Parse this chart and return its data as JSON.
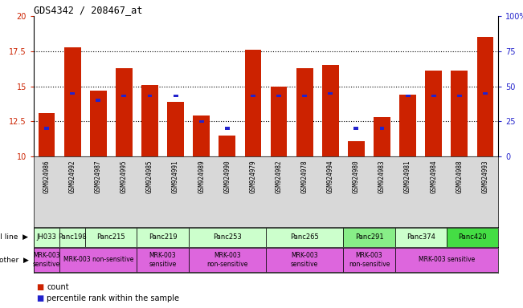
{
  "title": "GDS4342 / 208467_at",
  "samples": [
    "GSM924986",
    "GSM924992",
    "GSM924987",
    "GSM924995",
    "GSM924985",
    "GSM924991",
    "GSM924989",
    "GSM924990",
    "GSM924979",
    "GSM924982",
    "GSM924978",
    "GSM924994",
    "GSM924980",
    "GSM924983",
    "GSM924981",
    "GSM924984",
    "GSM924988",
    "GSM924993"
  ],
  "counts": [
    13.1,
    17.8,
    14.7,
    16.3,
    15.1,
    13.9,
    12.9,
    11.5,
    17.6,
    15.0,
    16.3,
    16.5,
    11.1,
    12.8,
    14.4,
    16.1,
    16.1,
    18.5
  ],
  "percentile_ranks": [
    20,
    45,
    40,
    43,
    43,
    43,
    25,
    20,
    43,
    43,
    43,
    45,
    20,
    20,
    43,
    43,
    43,
    45
  ],
  "ymin": 10,
  "ymax": 20,
  "yticks": [
    10,
    12.5,
    15,
    17.5,
    20
  ],
  "right_yticks": [
    0,
    25,
    50,
    75,
    100
  ],
  "bar_color": "#cc2200",
  "square_color": "#2222cc",
  "background_color": "#ffffff",
  "grid_lines": [
    12.5,
    15.0,
    17.5
  ],
  "cell_lines": [
    {
      "label": "JH033",
      "start": 0,
      "end": 1,
      "color": "#ccffcc"
    },
    {
      "label": "Panc198",
      "start": 1,
      "end": 2,
      "color": "#ccffcc"
    },
    {
      "label": "Panc215",
      "start": 2,
      "end": 4,
      "color": "#ccffcc"
    },
    {
      "label": "Panc219",
      "start": 4,
      "end": 6,
      "color": "#ccffcc"
    },
    {
      "label": "Panc253",
      "start": 6,
      "end": 9,
      "color": "#ccffcc"
    },
    {
      "label": "Panc265",
      "start": 9,
      "end": 12,
      "color": "#ccffcc"
    },
    {
      "label": "Panc291",
      "start": 12,
      "end": 14,
      "color": "#88ee88"
    },
    {
      "label": "Panc374",
      "start": 14,
      "end": 16,
      "color": "#ccffcc"
    },
    {
      "label": "Panc420",
      "start": 16,
      "end": 18,
      "color": "#44dd44"
    }
  ],
  "other_labels": [
    {
      "label": "MRK-003\nsensitive",
      "start": 0,
      "end": 1,
      "color": "#dd66dd"
    },
    {
      "label": "MRK-003 non-sensitive",
      "start": 1,
      "end": 4,
      "color": "#dd66dd"
    },
    {
      "label": "MRK-003\nsensitive",
      "start": 4,
      "end": 6,
      "color": "#dd66dd"
    },
    {
      "label": "MRK-003\nnon-sensitive",
      "start": 6,
      "end": 9,
      "color": "#dd66dd"
    },
    {
      "label": "MRK-003\nsensitive",
      "start": 9,
      "end": 12,
      "color": "#dd66dd"
    },
    {
      "label": "MRK-003\nnon-sensitive",
      "start": 12,
      "end": 14,
      "color": "#dd66dd"
    },
    {
      "label": "MRK-003 sensitive",
      "start": 14,
      "end": 18,
      "color": "#dd66dd"
    }
  ],
  "legend": [
    {
      "symbol": "count",
      "color": "#cc2200"
    },
    {
      "symbol": "percentile rank within the sample",
      "color": "#2222cc"
    }
  ]
}
